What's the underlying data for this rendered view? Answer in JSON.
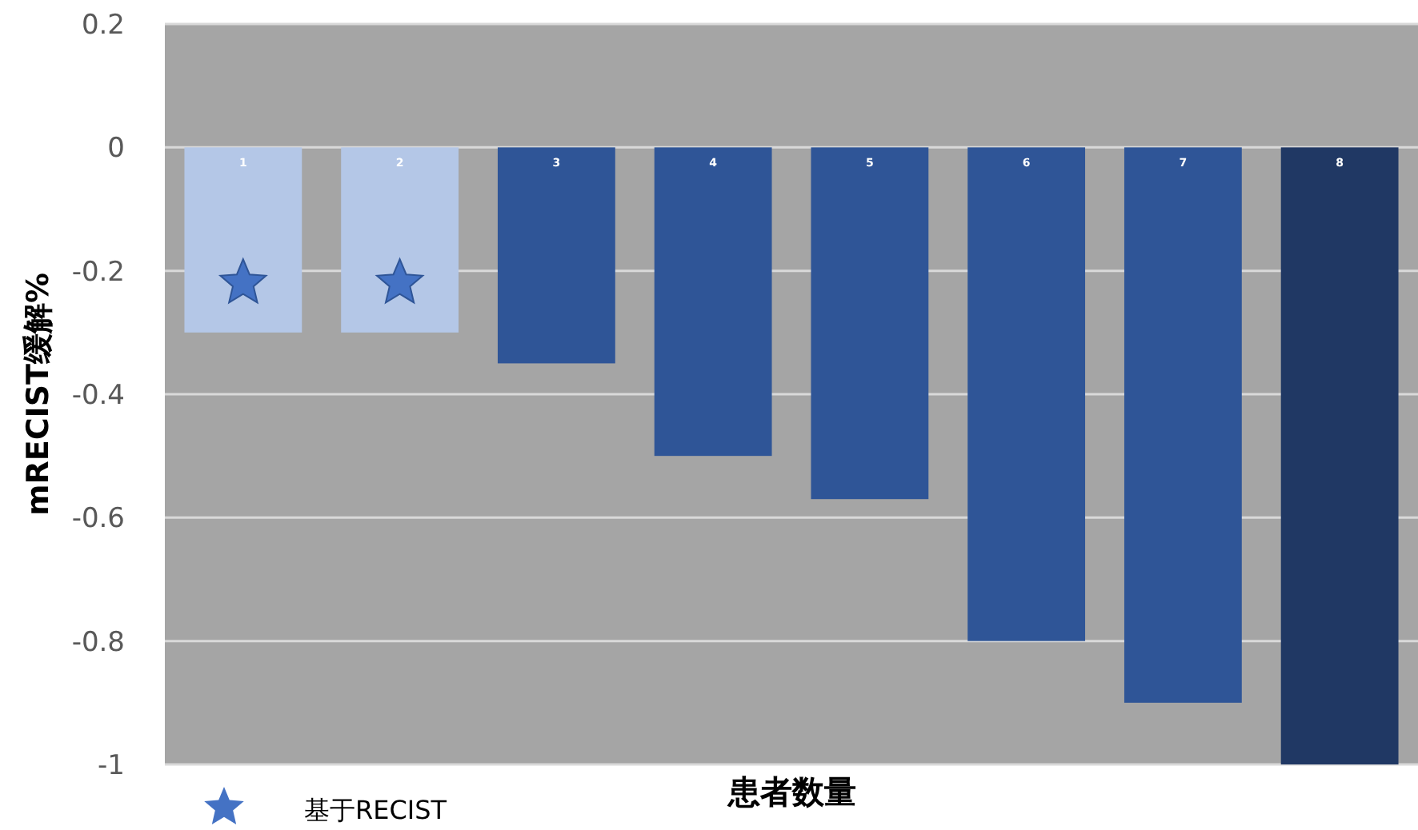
{
  "chart_data": {
    "type": "bar",
    "xlabel": "患者数量",
    "ylabel": "mRECIST缓解%",
    "categories": [
      "1",
      "2",
      "3",
      "4",
      "5",
      "6",
      "7",
      "8"
    ],
    "series": [
      {
        "values": [
          -0.3,
          -0.3,
          -0.35,
          -0.5,
          -0.57,
          -0.8,
          -0.9,
          -1.0
        ],
        "colors": [
          "#b4c7e7",
          "#b4c7e7",
          "#2f5597",
          "#2f5597",
          "#2f5597",
          "#2f5597",
          "#2f5597",
          "#203864"
        ]
      },
      {
        "type": "scatter",
        "name": "基于RECIST",
        "color": "#4472c4",
        "x": [
          "1",
          "2"
        ],
        "values": [
          -0.22,
          -0.22
        ]
      }
    ],
    "ylim": [
      -1,
      0.2
    ],
    "yticks": [
      -1,
      -0.8,
      -0.6,
      -0.4,
      -0.2,
      0,
      0.2
    ],
    "grid": "y",
    "legend": "bottom left",
    "marker": "star"
  }
}
